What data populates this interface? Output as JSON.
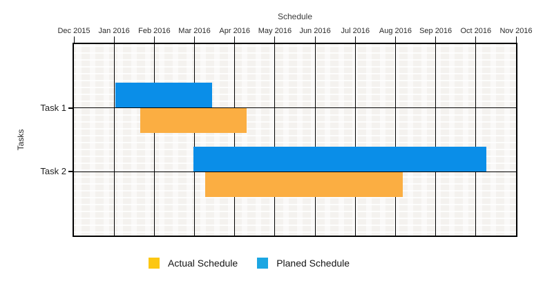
{
  "title": "Schedule",
  "axes": {
    "y_label": "Tasks",
    "y_tick_labels": [
      "Task 1",
      "Task 2"
    ],
    "x_tick_labels": [
      "Dec 2015",
      "Jan 2016",
      "Feb 2016",
      "Mar 2016",
      "Apr 2016",
      "May 2016",
      "Jun 2016",
      "Jul 2016",
      "Aug 2016",
      "Sep 2016",
      "Oct 2016",
      "Nov 2016"
    ]
  },
  "legend": [
    {
      "label": "Actual Schedule",
      "color": "#FCC712",
      "series_key": "actual"
    },
    {
      "label": "Planed Schedule",
      "color": "#1BA6E2",
      "series_key": "planned"
    }
  ],
  "colors": {
    "planned_bar": "#0A8EE8",
    "actual_bar": "#FBAE42",
    "grid": "#000000",
    "plot_background": "#F4F2EF"
  },
  "chart_data": {
    "type": "bar",
    "subtype": "gantt",
    "title": "Schedule",
    "xlabel": "",
    "ylabel": "Tasks",
    "x_ticks": [
      "Dec 2015",
      "Jan 2016",
      "Feb 2016",
      "Mar 2016",
      "Apr 2016",
      "May 2016",
      "Jun 2016",
      "Jul 2016",
      "Aug 2016",
      "Sep 2016",
      "Oct 2016",
      "Nov 2016"
    ],
    "x_axis_unit": "months, 0 = Dec 2015 tick",
    "xlim": [
      0,
      11
    ],
    "grid": true,
    "legend_position": "bottom",
    "series": [
      {
        "name": "Planed Schedule",
        "key": "planned"
      },
      {
        "name": "Actual Schedule",
        "key": "actual"
      }
    ],
    "tasks": [
      {
        "name": "Task 1",
        "planned": {
          "start": 1.03,
          "end": 3.44,
          "start_date": "2016-01-01",
          "end_date": "2016-03-14"
        },
        "actual": {
          "start": 1.65,
          "end": 4.3,
          "start_date": "2016-01-20",
          "end_date": "2016-04-09"
        }
      },
      {
        "name": "Task 2",
        "planned": {
          "start": 2.97,
          "end": 10.26,
          "start_date": "2016-03-01",
          "end_date": "2016-10-08"
        },
        "actual": {
          "start": 3.27,
          "end": 8.18,
          "start_date": "2016-03-09",
          "end_date": "2016-08-06"
        }
      }
    ]
  }
}
